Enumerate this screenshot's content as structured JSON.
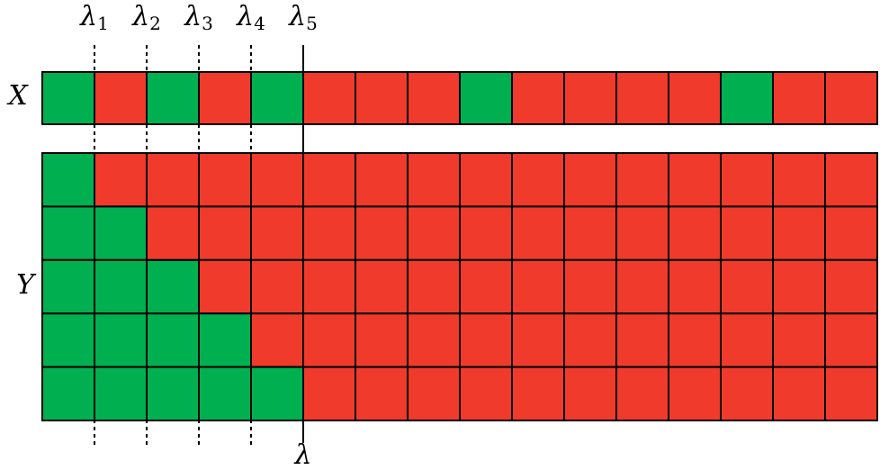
{
  "labels": {
    "x_row": "X",
    "y_grid": "Y",
    "threshold": "λ"
  },
  "markers": [
    {
      "symbol": "λ",
      "index": "1"
    },
    {
      "symbol": "λ",
      "index": "2"
    },
    {
      "symbol": "λ",
      "index": "3"
    },
    {
      "symbol": "λ",
      "index": "4"
    },
    {
      "symbol": "λ",
      "index": "5"
    }
  ],
  "x_row": [
    "#00b050",
    "#f03a2b",
    "#00b050",
    "#f03a2b",
    "#00b050",
    "#f03a2b",
    "#f03a2b",
    "#f03a2b",
    "#00b050",
    "#f03a2b",
    "#f03a2b",
    "#f03a2b",
    "#f03a2b",
    "#00b050",
    "#f03a2b",
    "#f03a2b"
  ],
  "y_grid": [
    [
      "#00b050",
      "#f03a2b",
      "#f03a2b",
      "#f03a2b",
      "#f03a2b",
      "#f03a2b",
      "#f03a2b",
      "#f03a2b",
      "#f03a2b",
      "#f03a2b",
      "#f03a2b",
      "#f03a2b",
      "#f03a2b",
      "#f03a2b",
      "#f03a2b",
      "#f03a2b"
    ],
    [
      "#00b050",
      "#00b050",
      "#f03a2b",
      "#f03a2b",
      "#f03a2b",
      "#f03a2b",
      "#f03a2b",
      "#f03a2b",
      "#f03a2b",
      "#f03a2b",
      "#f03a2b",
      "#f03a2b",
      "#f03a2b",
      "#f03a2b",
      "#f03a2b",
      "#f03a2b"
    ],
    [
      "#00b050",
      "#00b050",
      "#00b050",
      "#f03a2b",
      "#f03a2b",
      "#f03a2b",
      "#f03a2b",
      "#f03a2b",
      "#f03a2b",
      "#f03a2b",
      "#f03a2b",
      "#f03a2b",
      "#f03a2b",
      "#f03a2b",
      "#f03a2b",
      "#f03a2b"
    ],
    [
      "#00b050",
      "#00b050",
      "#00b050",
      "#00b050",
      "#f03a2b",
      "#f03a2b",
      "#f03a2b",
      "#f03a2b",
      "#f03a2b",
      "#f03a2b",
      "#f03a2b",
      "#f03a2b",
      "#f03a2b",
      "#f03a2b",
      "#f03a2b",
      "#f03a2b"
    ],
    [
      "#00b050",
      "#00b050",
      "#00b050",
      "#00b050",
      "#00b050",
      "#f03a2b",
      "#f03a2b",
      "#f03a2b",
      "#f03a2b",
      "#f03a2b",
      "#f03a2b",
      "#f03a2b",
      "#f03a2b",
      "#f03a2b",
      "#f03a2b",
      "#f03a2b"
    ]
  ]
}
